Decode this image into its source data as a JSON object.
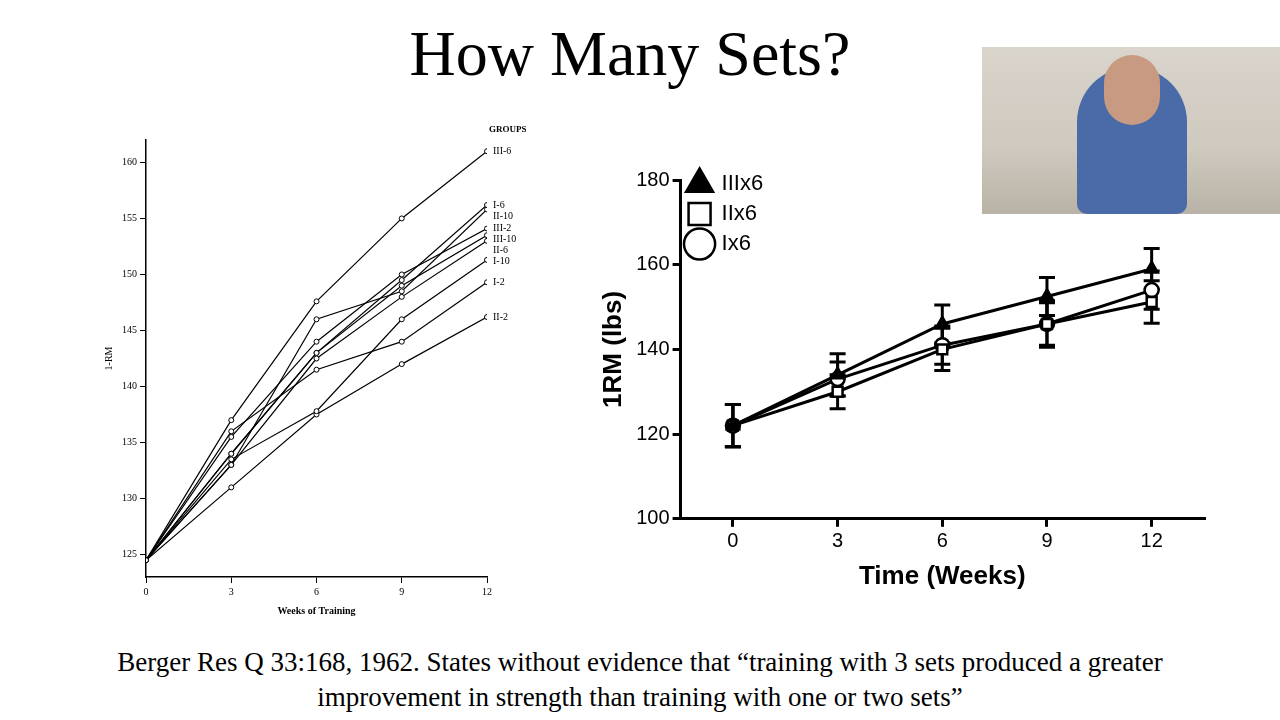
{
  "title": "How Many Sets?",
  "caption": "Berger Res Q 33:168, 1962. States without evidence that “training with 3 sets produced a greater improvement in strength than training with one or two sets”",
  "chart_data": [
    {
      "type": "line",
      "legend_title": "GROUPS",
      "x_label": "Weeks of Training",
      "y_label": "1-RM",
      "x": [
        0,
        3,
        6,
        9,
        12
      ],
      "xlim": [
        0,
        12
      ],
      "xticks": [
        0,
        3,
        6,
        9,
        12
      ],
      "ylim": [
        123,
        162
      ],
      "yticks": [
        125,
        130,
        135,
        140,
        145,
        150,
        155,
        160
      ],
      "grid": false,
      "marker": "open_circle",
      "series": [
        {
          "name": "III-6",
          "color": "#000000",
          "values": [
            124.5,
            137,
            147.6,
            155,
            161
          ]
        },
        {
          "name": "I-6",
          "color": "#000000",
          "values": [
            124.5,
            134,
            143,
            149.5,
            156.2
          ]
        },
        {
          "name": "II-10",
          "color": "#000000",
          "values": [
            124.5,
            133,
            146,
            148.5,
            155.8
          ]
        },
        {
          "name": "III-2",
          "color": "#000000",
          "values": [
            124.5,
            135.5,
            144,
            150,
            154.1
          ]
        },
        {
          "name": "III-10",
          "color": "#000000",
          "values": [
            124.5,
            134,
            143,
            149,
            153.5
          ]
        },
        {
          "name": "II-6",
          "color": "#000000",
          "values": [
            124.5,
            133,
            142.5,
            148,
            153
          ]
        },
        {
          "name": "I-10",
          "color": "#000000",
          "values": [
            124.5,
            133.5,
            137.8,
            146,
            151.3
          ]
        },
        {
          "name": "I-2",
          "color": "#000000",
          "values": [
            124.5,
            136,
            141.5,
            144,
            149.3
          ]
        },
        {
          "name": "II-2",
          "color": "#000000",
          "values": [
            124.5,
            131,
            137.5,
            142,
            146.2
          ]
        }
      ]
    },
    {
      "type": "line",
      "x_label": "Time (Weeks)",
      "y_label": "1RM (lbs)",
      "x": [
        0,
        3,
        6,
        9,
        12
      ],
      "xlim": [
        -1.5,
        13.5
      ],
      "xticks": [
        0,
        3,
        6,
        9,
        12
      ],
      "ylim": [
        100,
        180
      ],
      "yticks": [
        100,
        120,
        140,
        160,
        180
      ],
      "grid": false,
      "legend": "upper left",
      "series": [
        {
          "name": "IIIx6",
          "color": "#000000",
          "marker": "filled_triangle",
          "values": [
            122,
            134,
            146,
            152.5,
            159
          ],
          "errors": [
            5,
            5,
            4.5,
            4.5,
            4.8
          ]
        },
        {
          "name": "IIx6",
          "color": "#000000",
          "marker": "open_square",
          "values": [
            122,
            130,
            140,
            146,
            151.2
          ],
          "errors": [
            5,
            4,
            5,
            5.5,
            5
          ]
        },
        {
          "name": "Ix6",
          "color": "#000000",
          "marker": "open_circle",
          "values": [
            122,
            133,
            141,
            146,
            154
          ],
          "errors": [
            5,
            4,
            4.5,
            5,
            4.5
          ]
        }
      ]
    }
  ]
}
